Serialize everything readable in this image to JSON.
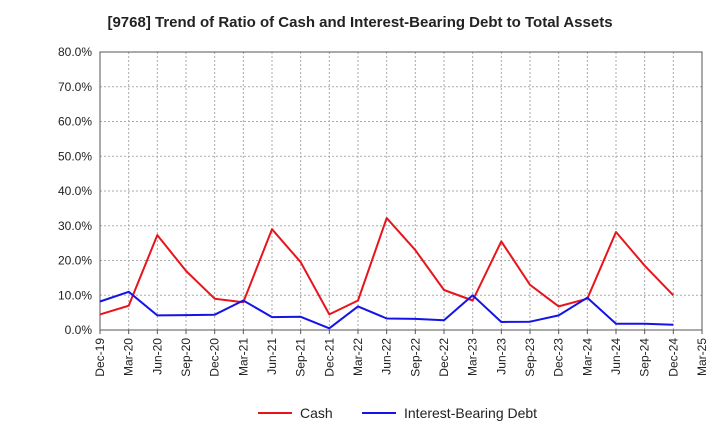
{
  "title": "[9768]  Trend of Ratio of Cash and Interest-Bearing Debt to Total Assets",
  "chart_data": {
    "type": "line",
    "title": "[9768]  Trend of Ratio of Cash and Interest-Bearing Debt to Total Assets",
    "xlabel": "",
    "ylabel": "",
    "categories": [
      "Dec-19",
      "Mar-20",
      "Jun-20",
      "Sep-20",
      "Dec-20",
      "Mar-21",
      "Jun-21",
      "Sep-21",
      "Dec-21",
      "Mar-22",
      "Jun-22",
      "Sep-22",
      "Dec-22",
      "Mar-23",
      "Jun-23",
      "Sep-23",
      "Dec-23",
      "Mar-24",
      "Jun-24",
      "Sep-24",
      "Dec-24",
      "Mar-25"
    ],
    "y_ticks": [
      "0.0%",
      "10.0%",
      "20.0%",
      "30.0%",
      "40.0%",
      "50.0%",
      "60.0%",
      "70.0%",
      "80.0%"
    ],
    "ylim": [
      0,
      80
    ],
    "grid": true,
    "legend_position": "bottom",
    "series": [
      {
        "name": "Cash",
        "color": "#e8141c",
        "values": [
          4.5,
          7.0,
          27.3,
          17.0,
          9.0,
          8.0,
          29.0,
          19.5,
          4.5,
          8.5,
          32.2,
          23.0,
          11.5,
          8.5,
          25.5,
          13.0,
          6.8,
          9.0,
          28.2,
          18.5,
          10.0,
          null
        ]
      },
      {
        "name": "Interest-Bearing Debt",
        "color": "#1414e6",
        "values": [
          8.2,
          11.0,
          4.2,
          4.3,
          4.4,
          8.5,
          3.7,
          3.8,
          0.5,
          6.8,
          3.3,
          3.2,
          2.8,
          10.0,
          2.3,
          2.4,
          4.2,
          9.3,
          1.8,
          1.8,
          1.5,
          null
        ]
      }
    ]
  }
}
